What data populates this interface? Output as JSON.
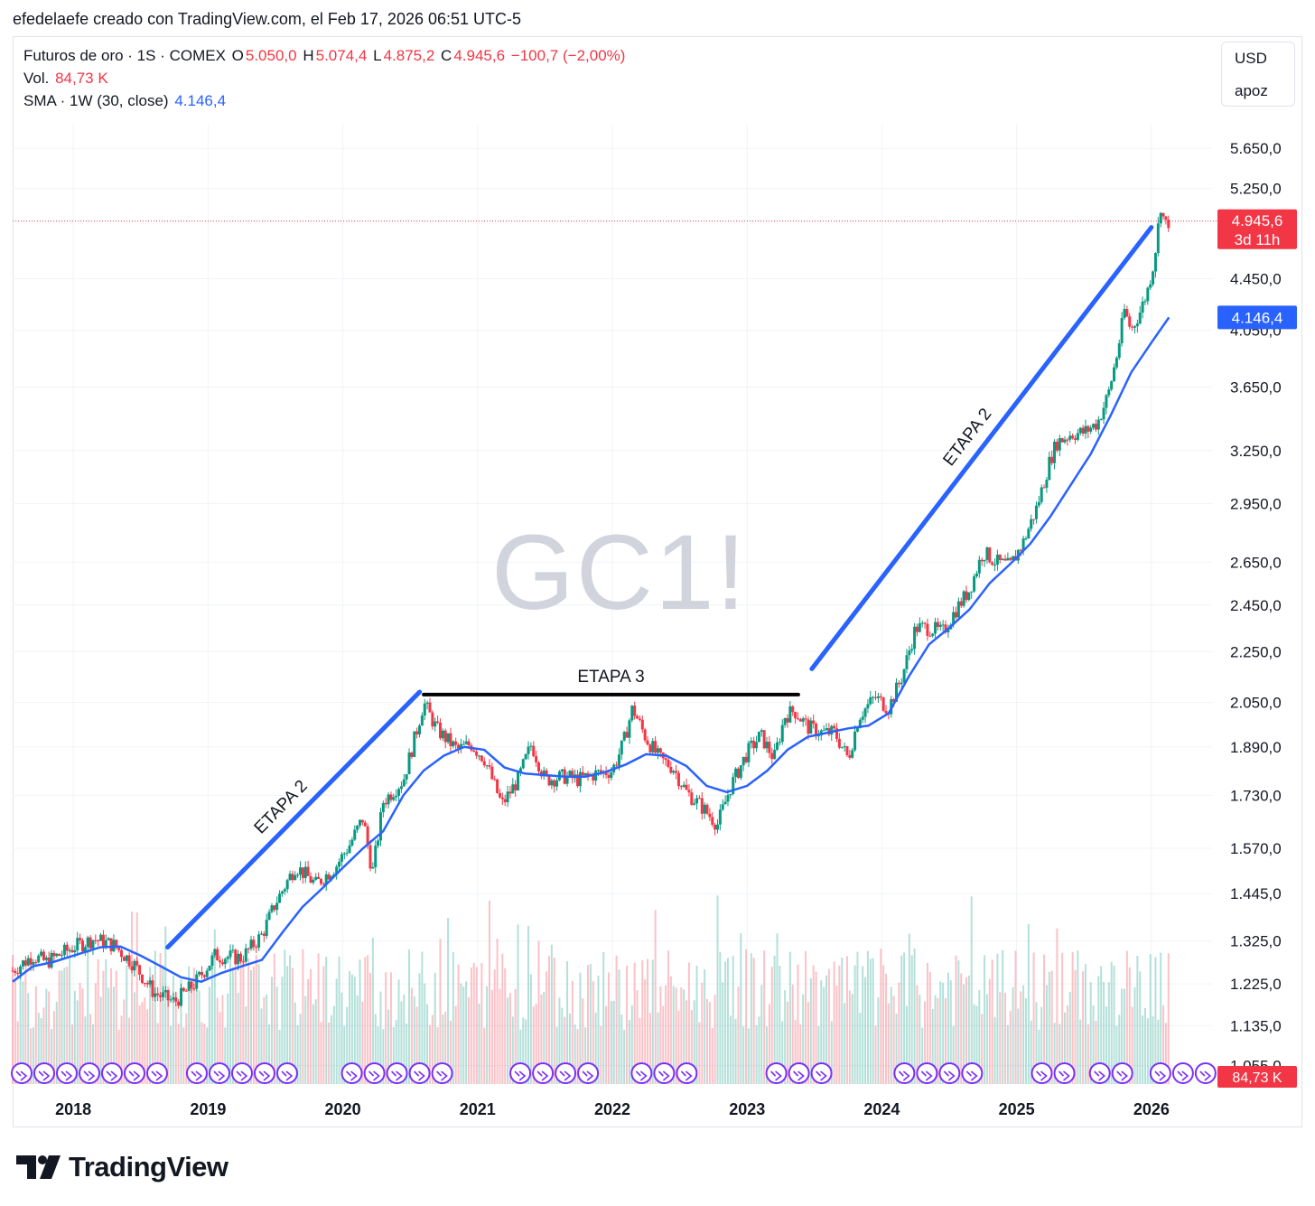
{
  "caption": "efedelaefe creado con TradingView.com, el Feb 17, 2026 06:51 UTC-5",
  "legend": {
    "symbol": "Futuros de oro · 1S · COMEX",
    "o_label": "O",
    "o_value": "5.050,0",
    "h_label": "H",
    "h_value": "5.074,4",
    "l_label": "L",
    "l_value": "4.875,2",
    "c_label": "C",
    "c_value": "4.945,6",
    "change": "−100,7 (−2,00%)",
    "vol_label": "Vol.",
    "vol_value": "84,73 K",
    "sma_label": "SMA · 1W (30, close)",
    "sma_value": "4.146,4"
  },
  "unit_box": {
    "currency": "USD",
    "mode": "apoz"
  },
  "watermark": "GC1!",
  "brand": "TradingView",
  "colors": {
    "up": "#089981",
    "down": "#f23645",
    "sma": "#2962ff",
    "trendline": "#2962ff",
    "flat": "#000000",
    "grid": "#f0f3fa",
    "event": "#7b2ff7"
  },
  "chart_data": {
    "type": "candlestick",
    "title": "Futuros de oro · 1S · COMEX",
    "scale": "log",
    "ylim": [
      1020,
      5900
    ],
    "y_ticks": [
      1055,
      1135,
      1225,
      1325,
      1445,
      1570,
      1730,
      1890,
      2050,
      2250,
      2450,
      2650,
      2950,
      3250,
      3650,
      4050,
      4450,
      5250,
      5650
    ],
    "y_tick_labels": [
      "1.055,0",
      "1.135,0",
      "1.225,0",
      "1.325,0",
      "1.445,0",
      "1.570,0",
      "1.730,0",
      "1.890,0",
      "2.050,0",
      "2.250,0",
      "2.450,0",
      "2.650,0",
      "2.950,0",
      "3.250,0",
      "3.650,0",
      "4.050,0",
      "4.450,0",
      "5.250,0",
      "5.650,0"
    ],
    "x_ticks": [
      2018,
      2019,
      2020,
      2021,
      2022,
      2023,
      2024,
      2025,
      2026
    ],
    "x_tick_labels": [
      "2018",
      "2019",
      "2020",
      "2021",
      "2022",
      "2023",
      "2024",
      "2025",
      "2026"
    ],
    "xlim": [
      2017.55,
      2026.45
    ],
    "price_series": [
      {
        "t": 2017.55,
        "p": 1255
      },
      {
        "t": 2017.7,
        "p": 1290
      },
      {
        "t": 2017.8,
        "p": 1275
      },
      {
        "t": 2018.0,
        "p": 1310
      },
      {
        "t": 2018.15,
        "p": 1330
      },
      {
        "t": 2018.3,
        "p": 1315
      },
      {
        "t": 2018.45,
        "p": 1270
      },
      {
        "t": 2018.6,
        "p": 1205
      },
      {
        "t": 2018.75,
        "p": 1185
      },
      {
        "t": 2018.9,
        "p": 1225
      },
      {
        "t": 2019.05,
        "p": 1290
      },
      {
        "t": 2019.25,
        "p": 1285
      },
      {
        "t": 2019.4,
        "p": 1340
      },
      {
        "t": 2019.5,
        "p": 1420
      },
      {
        "t": 2019.65,
        "p": 1520
      },
      {
        "t": 2019.8,
        "p": 1470
      },
      {
        "t": 2019.95,
        "p": 1520
      },
      {
        "t": 2020.05,
        "p": 1580
      },
      {
        "t": 2020.15,
        "p": 1660
      },
      {
        "t": 2020.22,
        "p": 1500
      },
      {
        "t": 2020.3,
        "p": 1710
      },
      {
        "t": 2020.45,
        "p": 1780
      },
      {
        "t": 2020.55,
        "p": 1950
      },
      {
        "t": 2020.6,
        "p": 2050
      },
      {
        "t": 2020.7,
        "p": 1950
      },
      {
        "t": 2020.85,
        "p": 1880
      },
      {
        "t": 2020.95,
        "p": 1900
      },
      {
        "t": 2021.05,
        "p": 1850
      },
      {
        "t": 2021.18,
        "p": 1700
      },
      {
        "t": 2021.3,
        "p": 1780
      },
      {
        "t": 2021.4,
        "p": 1900
      },
      {
        "t": 2021.5,
        "p": 1780
      },
      {
        "t": 2021.65,
        "p": 1790
      },
      {
        "t": 2021.75,
        "p": 1780
      },
      {
        "t": 2021.88,
        "p": 1800
      },
      {
        "t": 2022.0,
        "p": 1810
      },
      {
        "t": 2022.08,
        "p": 1900
      },
      {
        "t": 2022.15,
        "p": 2030
      },
      {
        "t": 2022.25,
        "p": 1920
      },
      {
        "t": 2022.35,
        "p": 1850
      },
      {
        "t": 2022.45,
        "p": 1820
      },
      {
        "t": 2022.55,
        "p": 1740
      },
      {
        "t": 2022.65,
        "p": 1700
      },
      {
        "t": 2022.78,
        "p": 1640
      },
      {
        "t": 2022.88,
        "p": 1760
      },
      {
        "t": 2023.0,
        "p": 1870
      },
      {
        "t": 2023.1,
        "p": 1930
      },
      {
        "t": 2023.2,
        "p": 1850
      },
      {
        "t": 2023.28,
        "p": 2000
      },
      {
        "t": 2023.35,
        "p": 2020
      },
      {
        "t": 2023.45,
        "p": 1960
      },
      {
        "t": 2023.55,
        "p": 1940
      },
      {
        "t": 2023.65,
        "p": 1940
      },
      {
        "t": 2023.75,
        "p": 1850
      },
      {
        "t": 2023.83,
        "p": 2000
      },
      {
        "t": 2023.95,
        "p": 2070
      },
      {
        "t": 2024.05,
        "p": 2030
      },
      {
        "t": 2024.15,
        "p": 2150
      },
      {
        "t": 2024.25,
        "p": 2350
      },
      {
        "t": 2024.35,
        "p": 2350
      },
      {
        "t": 2024.45,
        "p": 2330
      },
      {
        "t": 2024.55,
        "p": 2430
      },
      {
        "t": 2024.65,
        "p": 2520
      },
      {
        "t": 2024.75,
        "p": 2700
      },
      {
        "t": 2024.85,
        "p": 2650
      },
      {
        "t": 2024.95,
        "p": 2630
      },
      {
        "t": 2025.05,
        "p": 2750
      },
      {
        "t": 2025.15,
        "p": 2930
      },
      {
        "t": 2025.25,
        "p": 3200
      },
      {
        "t": 2025.3,
        "p": 3300
      },
      {
        "t": 2025.4,
        "p": 3350
      },
      {
        "t": 2025.5,
        "p": 3360
      },
      {
        "t": 2025.6,
        "p": 3420
      },
      {
        "t": 2025.68,
        "p": 3600
      },
      {
        "t": 2025.75,
        "p": 3900
      },
      {
        "t": 2025.8,
        "p": 4200
      },
      {
        "t": 2025.85,
        "p": 4050
      },
      {
        "t": 2025.92,
        "p": 4200
      },
      {
        "t": 2025.97,
        "p": 4350
      },
      {
        "t": 2026.02,
        "p": 4600
      },
      {
        "t": 2026.07,
        "p": 5100
      },
      {
        "t": 2026.1,
        "p": 4900
      },
      {
        "t": 2026.13,
        "p": 4945.6
      }
    ],
    "sma_series": [
      {
        "t": 2017.55,
        "p": 1230
      },
      {
        "t": 2017.7,
        "p": 1265
      },
      {
        "t": 2017.85,
        "p": 1275
      },
      {
        "t": 2018.0,
        "p": 1290
      },
      {
        "t": 2018.2,
        "p": 1310
      },
      {
        "t": 2018.35,
        "p": 1312
      },
      {
        "t": 2018.5,
        "p": 1290
      },
      {
        "t": 2018.65,
        "p": 1265
      },
      {
        "t": 2018.8,
        "p": 1240
      },
      {
        "t": 2018.95,
        "p": 1230
      },
      {
        "t": 2019.1,
        "p": 1250
      },
      {
        "t": 2019.25,
        "p": 1265
      },
      {
        "t": 2019.4,
        "p": 1280
      },
      {
        "t": 2019.55,
        "p": 1345
      },
      {
        "t": 2019.7,
        "p": 1410
      },
      {
        "t": 2019.85,
        "p": 1460
      },
      {
        "t": 2020.0,
        "p": 1515
      },
      {
        "t": 2020.15,
        "p": 1570
      },
      {
        "t": 2020.3,
        "p": 1620
      },
      {
        "t": 2020.45,
        "p": 1730
      },
      {
        "t": 2020.6,
        "p": 1810
      },
      {
        "t": 2020.75,
        "p": 1860
      },
      {
        "t": 2020.9,
        "p": 1890
      },
      {
        "t": 2021.05,
        "p": 1880
      },
      {
        "t": 2021.2,
        "p": 1820
      },
      {
        "t": 2021.35,
        "p": 1800
      },
      {
        "t": 2021.5,
        "p": 1795
      },
      {
        "t": 2021.65,
        "p": 1790
      },
      {
        "t": 2021.8,
        "p": 1790
      },
      {
        "t": 2021.95,
        "p": 1805
      },
      {
        "t": 2022.1,
        "p": 1830
      },
      {
        "t": 2022.25,
        "p": 1865
      },
      {
        "t": 2022.4,
        "p": 1860
      },
      {
        "t": 2022.55,
        "p": 1825
      },
      {
        "t": 2022.7,
        "p": 1760
      },
      {
        "t": 2022.85,
        "p": 1740
      },
      {
        "t": 2023.0,
        "p": 1760
      },
      {
        "t": 2023.15,
        "p": 1810
      },
      {
        "t": 2023.3,
        "p": 1880
      },
      {
        "t": 2023.45,
        "p": 1925
      },
      {
        "t": 2023.6,
        "p": 1940
      },
      {
        "t": 2023.75,
        "p": 1955
      },
      {
        "t": 2023.9,
        "p": 1965
      },
      {
        "t": 2024.05,
        "p": 2010
      },
      {
        "t": 2024.2,
        "p": 2150
      },
      {
        "t": 2024.35,
        "p": 2280
      },
      {
        "t": 2024.5,
        "p": 2350
      },
      {
        "t": 2024.65,
        "p": 2430
      },
      {
        "t": 2024.8,
        "p": 2550
      },
      {
        "t": 2024.95,
        "p": 2640
      },
      {
        "t": 2025.1,
        "p": 2740
      },
      {
        "t": 2025.25,
        "p": 2880
      },
      {
        "t": 2025.4,
        "p": 3050
      },
      {
        "t": 2025.55,
        "p": 3230
      },
      {
        "t": 2025.7,
        "p": 3470
      },
      {
        "t": 2025.85,
        "p": 3750
      },
      {
        "t": 2026.0,
        "p": 3960
      },
      {
        "t": 2026.13,
        "p": 4146.4
      }
    ],
    "trendlines": [
      {
        "label": "ETAPA 2",
        "style": "trend",
        "t1": 2018.7,
        "p1": 1310,
        "t2": 2020.57,
        "p2": 2090
      },
      {
        "label": "ETAPA 3",
        "style": "flat",
        "t1": 2020.6,
        "p1": 2080,
        "t2": 2023.38,
        "p2": 2080
      },
      {
        "label": "ETAPA 2",
        "style": "trend",
        "t1": 2023.48,
        "p1": 2180,
        "t2": 2026.0,
        "p2": 4890
      }
    ],
    "last_price_label": "4.945,6",
    "last_price_countdown": "3d 11h",
    "sma_price_label": "4.146,4",
    "volume_label": "84,73 K",
    "event_groups": [
      {
        "t1": 2017.55,
        "t2": 2018.63
      },
      {
        "t1": 2018.85,
        "t2": 2019.62
      },
      {
        "t1": 2020.0,
        "t2": 2020.76
      },
      {
        "t1": 2021.25,
        "t2": 2021.88
      },
      {
        "t1": 2022.15,
        "t2": 2022.55
      },
      {
        "t1": 2023.15,
        "t2": 2023.62
      },
      {
        "t1": 2024.1,
        "t2": 2024.72
      },
      {
        "t1": 2025.12,
        "t2": 2025.45
      },
      {
        "t1": 2025.55,
        "t2": 2025.72
      },
      {
        "t1": 2026.0,
        "t2": 2026.45
      }
    ]
  }
}
